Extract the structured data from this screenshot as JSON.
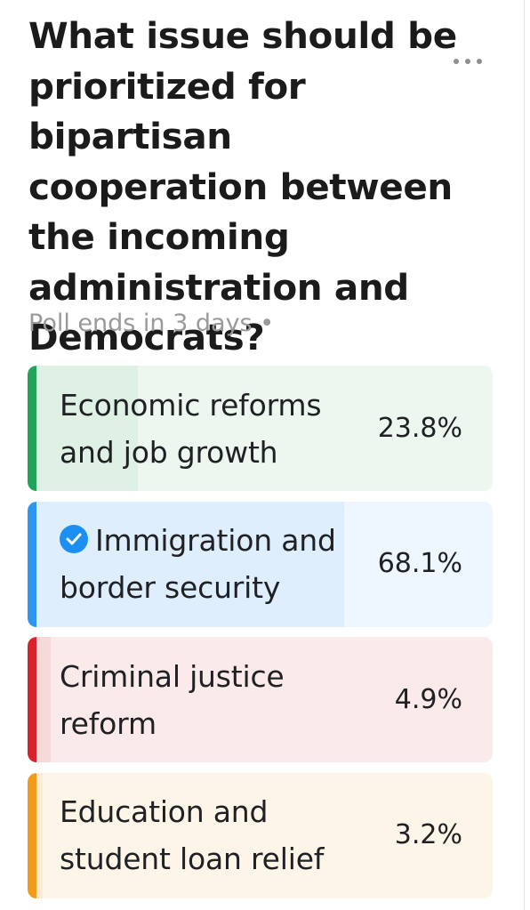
{
  "poll": {
    "question": "What issue should be prioritized for bipartisan cooperation between the incoming administration and Democrats?",
    "meta": "Poll ends in 3 days •",
    "options": [
      {
        "label": "Economic reforms and job growth",
        "percent_text": "23.8%",
        "percent": 23.8,
        "selected": false,
        "accent_color": "#20a45b"
      },
      {
        "label": "Immigration and border security",
        "percent_text": "68.1%",
        "percent": 68.1,
        "selected": true,
        "accent_color": "#2e96ef"
      },
      {
        "label": "Criminal justice reform",
        "percent_text": "4.9%",
        "percent": 4.9,
        "selected": false,
        "accent_color": "#d8232a"
      },
      {
        "label": "Education and student loan relief",
        "percent_text": "3.2%",
        "percent": 3.2,
        "selected": false,
        "accent_color": "#f29a1a"
      }
    ]
  },
  "icons": {
    "more": "more-options-icon",
    "check": "check-circle-icon"
  }
}
